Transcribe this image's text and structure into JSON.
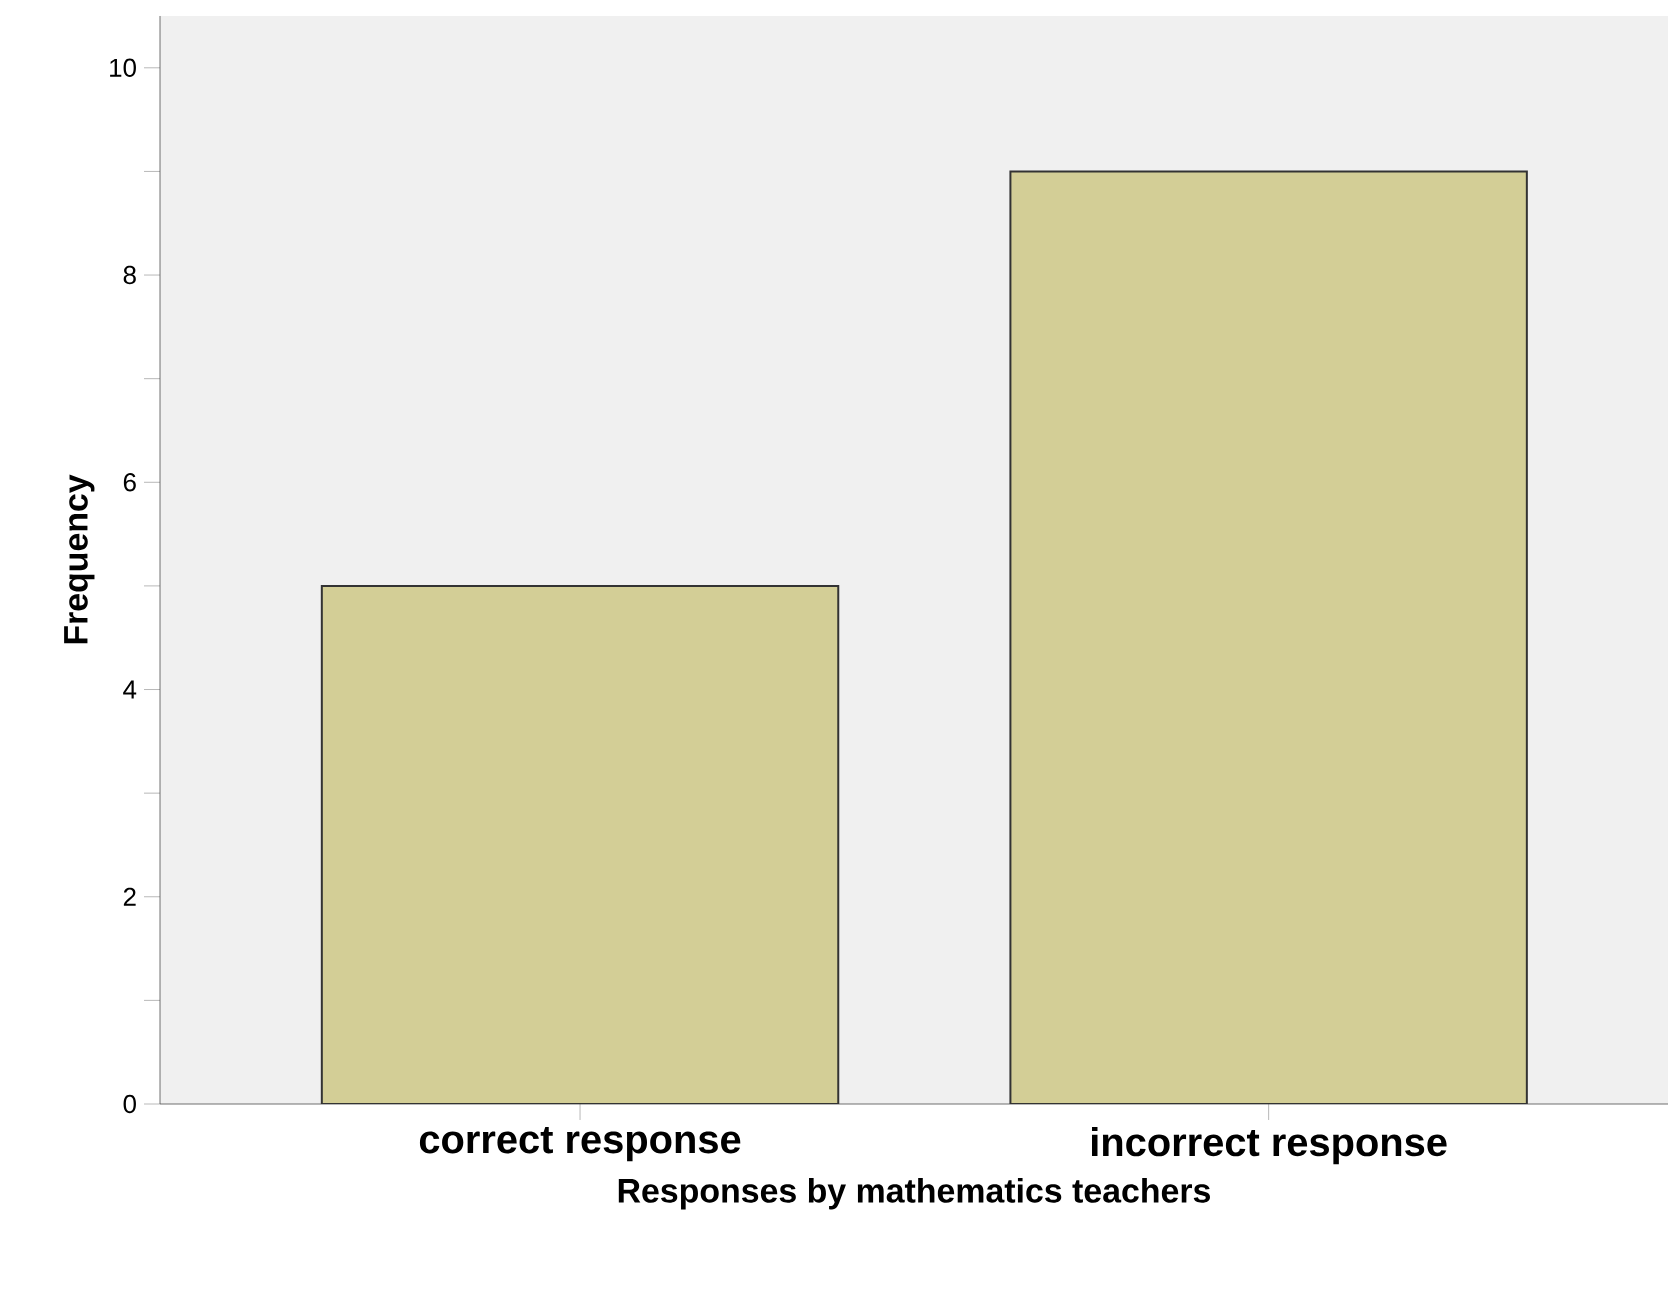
{
  "chart_data": {
    "type": "bar",
    "categories": [
      "correct response",
      "incorrect response"
    ],
    "values": [
      5,
      9
    ],
    "color": "#d3ce96",
    "xlabel": "Responses by mathematics teachers",
    "ylabel": "Frequency",
    "ylim": [
      0,
      10.5
    ],
    "yticks": [
      0,
      {
        "value": 1,
        "label": null
      },
      2,
      {
        "value": 3,
        "label": null
      },
      4,
      {
        "value": 5,
        "label": null
      },
      6,
      {
        "value": 7,
        "label": null
      },
      8,
      {
        "value": 9,
        "label": null
      },
      10
    ],
    "grid": false
  }
}
